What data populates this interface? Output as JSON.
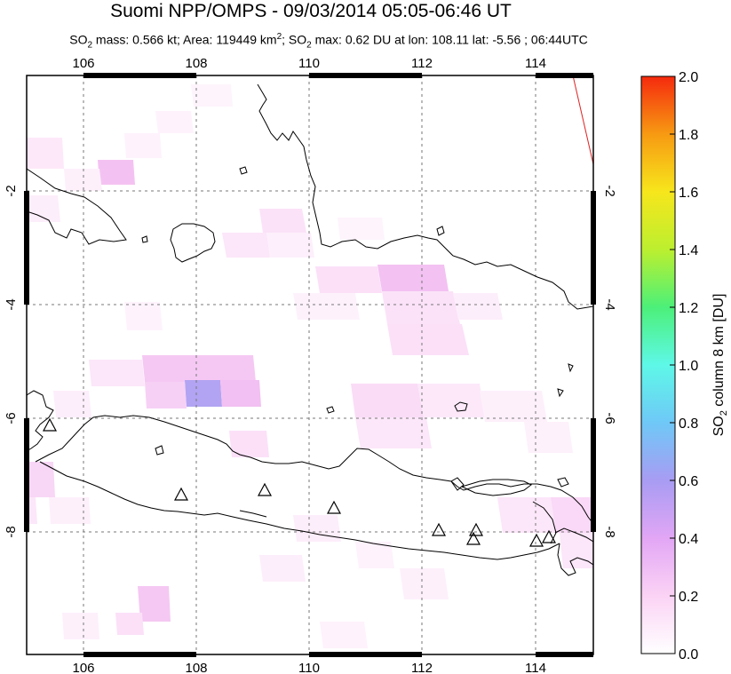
{
  "title": "Suomi NPP/OMPS - 09/03/2014 05:05-06:46 UT",
  "subtitle": {
    "parts": [
      "SO",
      "2",
      " mass: 0.566 kt; Area: 119449 km",
      "2",
      "; SO",
      "2",
      " max: 0.62 DU at lon: 108.11 lat: -5.56 ; 06:44UTC"
    ]
  },
  "map": {
    "lon_range": [
      105,
      115
    ],
    "lat_range": [
      -10,
      0.2
    ],
    "lon_ticks": [
      "106",
      "108",
      "110",
      "112",
      "114"
    ],
    "lat_ticks": [
      "-2",
      "-4",
      "-6",
      "-8"
    ],
    "grid": "dashed"
  },
  "colorbar": {
    "label_parts": [
      "SO",
      "2",
      " column 8 km [DU]"
    ],
    "min": 0.0,
    "max": 2.0,
    "ticks": [
      "0.0",
      "0.2",
      "0.4",
      "0.6",
      "0.8",
      "1.0",
      "1.2",
      "1.4",
      "1.6",
      "1.8",
      "2.0"
    ],
    "colors": [
      "#ffffff",
      "#fbd3f5",
      "#e2a6f5",
      "#a89cf3",
      "#6fc8f7",
      "#5ef8e8",
      "#4cf079",
      "#bcef2f",
      "#f7e61c",
      "#f79a12",
      "#f52a0e"
    ]
  },
  "volcano_count": 12
}
